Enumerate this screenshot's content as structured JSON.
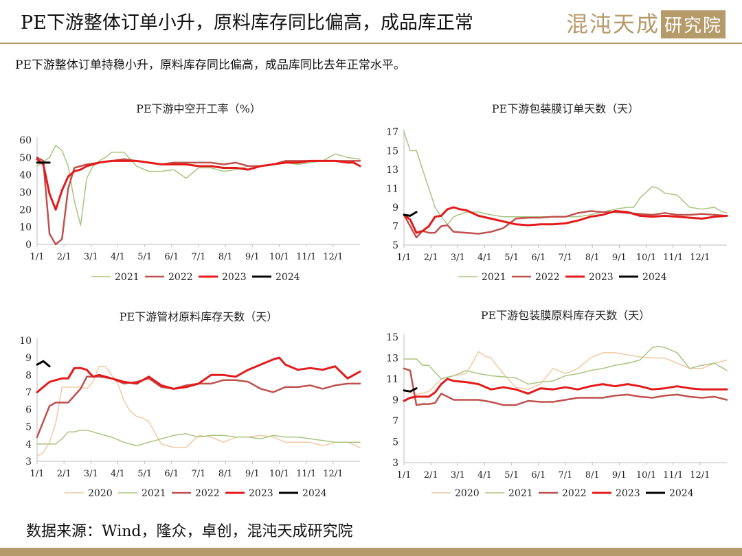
{
  "header": {
    "title": "PE下游整体订单小升，原料库存同比偏高，成品库正常",
    "logo_text": "混沌天成",
    "logo_box_text": "研究院"
  },
  "subtitle": "PE下游整体订单持稳小升，原料库存同比偏高，成品库同比去年正常水平。",
  "source": "数据来源：Wind，隆众，卓创，混沌天成研究院",
  "colors": {
    "brand": "#b59a6a",
    "2020": "#f2c9a0",
    "2021": "#a9c47f",
    "2022": "#c0504d",
    "2023": "#e41a1a",
    "2024": "#000000"
  },
  "chart_data": [
    {
      "id": "chart1",
      "type": "line",
      "title": "PE下游中空开工率（%）",
      "x_ticks": [
        "1/1",
        "2/1",
        "3/1",
        "4/1",
        "5/1",
        "6/1",
        "7/1",
        "8/1",
        "9/1",
        "10/1",
        "11/1",
        "12/1"
      ],
      "ylim": [
        0,
        60
      ],
      "y_ticks": [
        0,
        10,
        20,
        30,
        40,
        50,
        60
      ],
      "grid": false,
      "legend": "bottom",
      "series": [
        {
          "name": "2021",
          "x": [
            0,
            2,
            3,
            4,
            5,
            6,
            7,
            8,
            9,
            10,
            11,
            12,
            14,
            16,
            18,
            20,
            22,
            24,
            26,
            28,
            30,
            32,
            34,
            36,
            38,
            40,
            42,
            44,
            46,
            48,
            50,
            52
          ],
          "values": [
            45,
            50,
            57,
            54,
            45,
            25,
            11,
            38,
            45,
            48,
            50,
            53,
            53,
            45,
            42,
            42,
            43,
            38,
            44,
            44,
            42,
            43,
            45,
            45,
            46,
            47,
            46,
            47,
            48,
            52,
            50,
            49
          ]
        },
        {
          "name": "2022",
          "x": [
            0,
            1,
            2,
            3,
            4,
            5,
            6,
            8,
            10,
            12,
            14,
            16,
            18,
            20,
            22,
            24,
            26,
            28,
            30,
            32,
            34,
            36,
            38,
            40,
            42,
            44,
            46,
            48,
            50,
            52
          ],
          "values": [
            50,
            48,
            6,
            0,
            3,
            32,
            44,
            46,
            47,
            48,
            49,
            48,
            47,
            46,
            47,
            47,
            47,
            47,
            46,
            47,
            45,
            45,
            46,
            48,
            48,
            48,
            48,
            48,
            48,
            48
          ]
        },
        {
          "name": "2023",
          "x": [
            0,
            1,
            2,
            3,
            4,
            5,
            6,
            7,
            8,
            10,
            12,
            14,
            16,
            18,
            20,
            22,
            24,
            26,
            28,
            30,
            32,
            34,
            36,
            38,
            40,
            42,
            44,
            46,
            48,
            50,
            51,
            52
          ],
          "values": [
            49,
            46,
            29,
            20,
            31,
            39,
            42,
            43,
            45,
            47,
            48,
            48,
            48,
            47,
            46,
            46,
            46,
            45,
            45,
            44,
            44,
            43,
            45,
            46,
            47,
            47,
            48,
            48,
            48,
            47,
            47,
            45
          ]
        },
        {
          "name": "2024",
          "x": [
            0,
            1,
            2
          ],
          "values": [
            47,
            47,
            47
          ]
        }
      ]
    },
    {
      "id": "chart2",
      "type": "line",
      "title": "PE下游包装膜订单天数（天）",
      "x_ticks": [
        "1/1",
        "2/1",
        "3/1",
        "4/1",
        "5/1",
        "6/1",
        "7/1",
        "8/1",
        "9/1",
        "10/1",
        "11/1",
        "12/1"
      ],
      "ylim": [
        5,
        17
      ],
      "y_ticks": [
        5,
        7,
        9,
        11,
        13,
        15,
        17
      ],
      "grid": false,
      "legend": "bottom",
      "series": [
        {
          "name": "2021",
          "x": [
            0,
            1,
            2,
            3,
            4,
            5,
            6,
            7,
            8,
            10,
            12,
            14,
            16,
            18,
            20,
            22,
            24,
            26,
            28,
            30,
            32,
            34,
            36,
            37,
            38,
            40,
            41,
            42,
            44,
            46,
            48,
            50,
            51,
            52
          ],
          "values": [
            17,
            15,
            15,
            13,
            11,
            9,
            8,
            7.2,
            8,
            8.5,
            8.5,
            8.2,
            8.0,
            8.0,
            8.0,
            8.0,
            8.0,
            8.0,
            8.0,
            8.2,
            8.5,
            8.8,
            9,
            9,
            10,
            11.2,
            11,
            10.5,
            10.3,
            9,
            8.8,
            9,
            8.6,
            8.4
          ]
        },
        {
          "name": "2022",
          "x": [
            0,
            1,
            2,
            3,
            4,
            5,
            6,
            7,
            8,
            10,
            12,
            14,
            16,
            18,
            20,
            22,
            24,
            26,
            28,
            30,
            32,
            34,
            36,
            38,
            40,
            42,
            44,
            46,
            48,
            50,
            52
          ],
          "values": [
            8.2,
            7,
            5.8,
            6.5,
            6.3,
            6.3,
            7,
            7.1,
            6.4,
            6.3,
            6.2,
            6.4,
            6.8,
            7.8,
            7.9,
            7.9,
            8.0,
            8.0,
            8.4,
            8.6,
            8.5,
            8.5,
            8.4,
            8.3,
            8.2,
            8.4,
            8.2,
            8.2,
            8.3,
            8.2,
            8.1
          ]
        },
        {
          "name": "2023",
          "x": [
            0,
            1,
            2,
            3,
            4,
            5,
            6,
            7,
            8,
            9,
            10,
            12,
            14,
            16,
            18,
            20,
            22,
            24,
            26,
            28,
            30,
            32,
            34,
            36,
            38,
            40,
            42,
            44,
            46,
            48,
            50,
            52
          ],
          "values": [
            8.2,
            7.7,
            6.3,
            6.5,
            7.0,
            8.0,
            8.1,
            8.8,
            9.0,
            8.8,
            8.7,
            8.1,
            7.8,
            7.5,
            7.2,
            7.1,
            7.2,
            7.2,
            7.3,
            7.6,
            8.0,
            8.2,
            8.6,
            8.5,
            8.1,
            8.0,
            8.1,
            8.0,
            7.9,
            7.8,
            8.0,
            8.1
          ]
        },
        {
          "name": "2024",
          "x": [
            0,
            1,
            2
          ],
          "values": [
            8.2,
            8.1,
            8.5
          ]
        }
      ]
    },
    {
      "id": "chart3",
      "type": "line",
      "title": "PE下游管材原料库存天数（天）",
      "x_ticks": [
        "1/1",
        "2/1",
        "3/1",
        "4/1",
        "5/1",
        "6/1",
        "7/1",
        "8/1",
        "9/1",
        "10/1",
        "11/1",
        "12/1"
      ],
      "ylim": [
        3,
        10
      ],
      "y_ticks": [
        3,
        4,
        5,
        6,
        7,
        8,
        9,
        10
      ],
      "grid": false,
      "legend": "bottom",
      "series": [
        {
          "name": "2020",
          "x": [
            0,
            1,
            2,
            3,
            4,
            5,
            6,
            7,
            8,
            9,
            10,
            11,
            12,
            13,
            14,
            15,
            16,
            17,
            18,
            20,
            22,
            24,
            26,
            28,
            30,
            32,
            34,
            36,
            38,
            40,
            42,
            44,
            46,
            48,
            50,
            52
          ],
          "values": [
            3.3,
            3.5,
            4.1,
            5.2,
            7.3,
            7.3,
            7.3,
            7.3,
            7.2,
            7.6,
            8.5,
            8.5,
            8.0,
            7.5,
            6.5,
            5.9,
            5.6,
            5.5,
            5.3,
            4.0,
            3.8,
            3.8,
            4.5,
            4.4,
            4.1,
            4.4,
            4.4,
            4.5,
            4.4,
            4.1,
            4.1,
            4.1,
            3.9,
            4.1,
            4.1,
            3.8
          ]
        },
        {
          "name": "2021",
          "x": [
            0,
            2,
            3,
            4,
            5,
            6,
            7,
            8,
            10,
            12,
            14,
            16,
            18,
            20,
            22,
            24,
            26,
            28,
            30,
            32,
            34,
            36,
            38,
            40,
            42,
            44,
            46,
            48,
            50,
            52
          ],
          "values": [
            4.0,
            4.0,
            4.0,
            4.3,
            4.7,
            4.7,
            4.8,
            4.8,
            4.6,
            4.4,
            4.1,
            3.9,
            4.1,
            4.3,
            4.5,
            4.6,
            4.4,
            4.5,
            4.5,
            4.4,
            4.4,
            4.3,
            4.5,
            4.4,
            4.4,
            4.3,
            4.2,
            4.1,
            4.1,
            4.1
          ]
        },
        {
          "name": "2022",
          "x": [
            0,
            1,
            2,
            3,
            4,
            5,
            6,
            7,
            8,
            9,
            10,
            12,
            14,
            16,
            18,
            20,
            22,
            24,
            26,
            28,
            30,
            32,
            34,
            36,
            38,
            40,
            42,
            44,
            46,
            48,
            50,
            52
          ],
          "values": [
            4.4,
            5.3,
            6.2,
            6.4,
            6.4,
            6.4,
            6.8,
            7.2,
            7.9,
            7.9,
            7.9,
            7.8,
            7.5,
            7.6,
            7.8,
            7.3,
            7.2,
            7.4,
            7.5,
            7.5,
            7.7,
            7.7,
            7.6,
            7.2,
            7.0,
            7.3,
            7.3,
            7.4,
            7.2,
            7.4,
            7.5,
            7.5
          ]
        },
        {
          "name": "2023",
          "x": [
            0,
            1,
            2,
            3,
            4,
            5,
            6,
            7,
            8,
            9,
            10,
            12,
            14,
            16,
            18,
            20,
            22,
            24,
            26,
            28,
            30,
            32,
            34,
            36,
            38,
            39,
            40,
            42,
            44,
            46,
            48,
            50,
            52
          ],
          "values": [
            7.0,
            7.3,
            7.6,
            7.7,
            7.8,
            7.8,
            8.4,
            8.4,
            8.3,
            7.9,
            8.0,
            7.8,
            7.6,
            7.5,
            7.9,
            7.4,
            7.2,
            7.3,
            7.5,
            8.0,
            8.0,
            7.9,
            8.3,
            8.6,
            8.9,
            9.0,
            8.6,
            8.3,
            8.4,
            8.3,
            8.5,
            7.8,
            8.2
          ]
        },
        {
          "name": "2024",
          "x": [
            0,
            1,
            2
          ],
          "values": [
            8.6,
            8.8,
            8.5
          ]
        }
      ]
    },
    {
      "id": "chart4",
      "type": "line",
      "title": "PE下游包装膜原料库存天数（天）",
      "x_ticks": [
        "1/1",
        "2/1",
        "3/1",
        "4/1",
        "5/1",
        "6/1",
        "7/1",
        "8/1",
        "9/1",
        "10/1",
        "11/1",
        "12/1"
      ],
      "ylim": [
        3,
        15
      ],
      "y_ticks": [
        3,
        5,
        7,
        9,
        11,
        13,
        15
      ],
      "grid": false,
      "legend": "bottom",
      "series": [
        {
          "name": "2020",
          "x": [
            0,
            2,
            4,
            6,
            8,
            10,
            11,
            12,
            13,
            14,
            16,
            18,
            20,
            22,
            24,
            26,
            28,
            30,
            32,
            34,
            36,
            38,
            40,
            42,
            44,
            46,
            48,
            50,
            52
          ],
          "values": [
            10.0,
            9.5,
            9.8,
            11.0,
            11.3,
            11.5,
            12.5,
            13.6,
            13.2,
            13.0,
            11.5,
            10.2,
            10.0,
            10.5,
            12.0,
            11.5,
            12.0,
            13.0,
            13.5,
            13.5,
            13.3,
            13.1,
            13.0,
            13.0,
            12.5,
            12.0,
            12.0,
            12.5,
            12.8
          ]
        },
        {
          "name": "2021",
          "x": [
            0,
            2,
            3,
            4,
            6,
            8,
            10,
            12,
            14,
            16,
            18,
            20,
            22,
            24,
            26,
            28,
            30,
            32,
            34,
            36,
            38,
            40,
            41,
            42,
            44,
            46,
            48,
            50,
            52
          ],
          "values": [
            12.9,
            12.9,
            12.3,
            12.3,
            11.0,
            11.3,
            11.8,
            11.5,
            11.3,
            11.2,
            11.1,
            10.5,
            10.7,
            10.8,
            11.3,
            11.5,
            11.8,
            12.0,
            12.3,
            12.5,
            12.8,
            14.0,
            14.1,
            14.0,
            13.5,
            12.0,
            12.3,
            12.5,
            11.8
          ]
        },
        {
          "name": "2022",
          "x": [
            0,
            1,
            2,
            3,
            4,
            5,
            6,
            8,
            10,
            12,
            14,
            16,
            18,
            20,
            22,
            24,
            26,
            28,
            30,
            32,
            34,
            36,
            38,
            40,
            42,
            44,
            46,
            48,
            50,
            52
          ],
          "values": [
            12.0,
            11.8,
            8.5,
            8.6,
            8.6,
            8.7,
            9.6,
            9.0,
            9.0,
            9.0,
            8.8,
            8.5,
            8.5,
            8.9,
            8.8,
            8.8,
            9.0,
            9.2,
            9.2,
            9.2,
            9.4,
            9.5,
            9.3,
            9.2,
            9.4,
            9.5,
            9.3,
            9.2,
            9.3,
            9.0
          ]
        },
        {
          "name": "2023",
          "x": [
            0,
            1,
            2,
            3,
            4,
            5,
            6,
            7,
            8,
            10,
            12,
            14,
            16,
            18,
            20,
            22,
            24,
            26,
            28,
            30,
            32,
            34,
            36,
            38,
            40,
            42,
            44,
            46,
            48,
            50,
            52
          ],
          "values": [
            8.9,
            9.2,
            9.3,
            9.3,
            9.3,
            9.7,
            10.5,
            11.0,
            10.8,
            10.7,
            10.5,
            10.0,
            10.2,
            10.0,
            9.6,
            10.1,
            10.0,
            10.2,
            10.0,
            10.3,
            10.5,
            10.3,
            10.5,
            10.3,
            10.0,
            10.1,
            10.3,
            10.1,
            10.0,
            10.0,
            10.0
          ]
        },
        {
          "name": "2024",
          "x": [
            0,
            1,
            2
          ],
          "values": [
            9.9,
            9.8,
            10.1
          ]
        }
      ]
    }
  ]
}
